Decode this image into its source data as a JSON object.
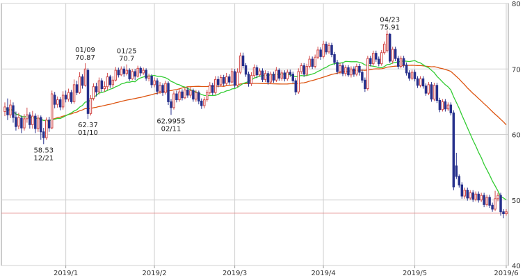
{
  "chart_data": {
    "type": "candlestick",
    "x_ticks": [
      {
        "label": "2019/1",
        "index": 22
      },
      {
        "label": "2019/2",
        "index": 54
      },
      {
        "label": "2019/3",
        "index": 83
      },
      {
        "label": "2019/4",
        "index": 115
      },
      {
        "label": "2019/5",
        "index": 148
      },
      {
        "label": "2019/6",
        "index": 181
      }
    ],
    "y_ticks": [
      40,
      50,
      60,
      70,
      80
    ],
    "ylim": [
      40,
      80
    ],
    "grid": true,
    "colors": {
      "up": "#d24a4a",
      "down": "#26308c",
      "ma_short": "#33cc33",
      "ma_long": "#dd5511",
      "price_line": "#e08080",
      "grid": "#d0d0d0",
      "axis": "#999999"
    },
    "current_price": 48.0,
    "annotations": [
      {
        "date": "12/21",
        "value": "58.53",
        "index": 14,
        "kind": "low"
      },
      {
        "date": "01/09",
        "value": "70.87",
        "index": 29,
        "kind": "high"
      },
      {
        "date": "01/10",
        "value": "62.37",
        "index": 30,
        "kind": "low"
      },
      {
        "date": "01/25",
        "value": "70.7",
        "index": 44,
        "kind": "high"
      },
      {
        "date": "02/11",
        "value": "62.9955",
        "index": 60,
        "kind": "low"
      },
      {
        "date": "04/23",
        "value": "75.91",
        "index": 139,
        "kind": "high"
      }
    ],
    "candles": [
      [
        63.5,
        64.2,
        64.9,
        62.8
      ],
      [
        64.1,
        63.0,
        65.5,
        62.2
      ],
      [
        63.0,
        64.5,
        65.3,
        62.5
      ],
      [
        64.4,
        62.6,
        64.9,
        61.8
      ],
      [
        62.6,
        61.2,
        63.5,
        60.6
      ],
      [
        61.3,
        62.6,
        63.3,
        60.8
      ],
      [
        62.5,
        61.0,
        62.9,
        60.2
      ],
      [
        61.0,
        62.4,
        63.1,
        60.6
      ],
      [
        62.4,
        63.0,
        64.1,
        61.8
      ],
      [
        63.0,
        61.5,
        63.4,
        60.9
      ],
      [
        61.5,
        62.8,
        63.6,
        60.9
      ],
      [
        62.8,
        60.9,
        63.2,
        60.2
      ],
      [
        60.9,
        62.5,
        63.0,
        60.4
      ],
      [
        62.6,
        60.4,
        62.9,
        59.2
      ],
      [
        60.4,
        59.5,
        61.0,
        58.53
      ],
      [
        59.5,
        62.2,
        62.6,
        59.2
      ],
      [
        62.2,
        61.0,
        62.7,
        60.4
      ],
      [
        61.0,
        66.2,
        66.7,
        60.8
      ],
      [
        66.0,
        64.6,
        66.5,
        64.0
      ],
      [
        64.6,
        65.3,
        65.8,
        64.1
      ],
      [
        65.3,
        64.2,
        65.7,
        63.7
      ],
      [
        64.2,
        66.0,
        66.6,
        63.8
      ],
      [
        66.0,
        65.4,
        66.7,
        64.9
      ],
      [
        65.4,
        66.4,
        67.0,
        65.0
      ],
      [
        66.4,
        65.0,
        66.8,
        64.7
      ],
      [
        65.0,
        67.6,
        68.4,
        64.7
      ],
      [
        67.6,
        66.4,
        68.2,
        66.0
      ],
      [
        66.4,
        68.8,
        69.5,
        66.2
      ],
      [
        68.8,
        67.5,
        69.2,
        67.0
      ],
      [
        67.5,
        70.0,
        70.87,
        67.3
      ],
      [
        69.8,
        63.2,
        70.1,
        62.37
      ],
      [
        63.2,
        65.5,
        66.0,
        62.9
      ],
      [
        65.5,
        67.3,
        67.8,
        65.2
      ],
      [
        67.3,
        66.5,
        67.9,
        65.8
      ],
      [
        66.5,
        68.2,
        68.7,
        66.1
      ],
      [
        68.2,
        67.0,
        68.6,
        66.5
      ],
      [
        67.0,
        67.3,
        68.1,
        66.5
      ],
      [
        67.3,
        68.8,
        69.4,
        66.8
      ],
      [
        68.8,
        67.6,
        69.1,
        67.1
      ],
      [
        67.6,
        68.3,
        68.9,
        67.1
      ],
      [
        68.3,
        69.8,
        70.3,
        68.1
      ],
      [
        69.8,
        69.1,
        70.2,
        68.7
      ],
      [
        69.1,
        70.0,
        70.4,
        68.9
      ],
      [
        70.0,
        69.3,
        70.4,
        68.8
      ],
      [
        69.3,
        69.8,
        70.7,
        69.0
      ],
      [
        69.8,
        68.5,
        70.1,
        68.2
      ],
      [
        68.5,
        69.6,
        70.0,
        68.3
      ],
      [
        69.6,
        68.9,
        70.0,
        68.3
      ],
      [
        68.9,
        70.1,
        70.5,
        68.7
      ],
      [
        70.1,
        69.4,
        70.4,
        68.9
      ],
      [
        69.4,
        69.8,
        70.2,
        69.1
      ],
      [
        69.8,
        68.6,
        70.1,
        68.2
      ],
      [
        68.6,
        68.9,
        69.3,
        68.1
      ],
      [
        68.9,
        67.6,
        69.2,
        67.1
      ],
      [
        67.6,
        68.2,
        68.7,
        67.2
      ],
      [
        68.2,
        66.6,
        68.6,
        66.1
      ],
      [
        66.6,
        67.5,
        68.0,
        66.2
      ],
      [
        67.5,
        66.4,
        67.8,
        65.9
      ],
      [
        66.4,
        67.8,
        68.2,
        66.1
      ],
      [
        67.8,
        65.0,
        68.1,
        64.5
      ],
      [
        65.0,
        64.1,
        65.4,
        62.9955
      ],
      [
        64.1,
        66.2,
        66.6,
        63.8
      ],
      [
        66.2,
        65.3,
        66.7,
        64.9
      ],
      [
        65.3,
        66.5,
        66.9,
        65.0
      ],
      [
        66.5,
        65.6,
        66.9,
        65.2
      ],
      [
        65.6,
        66.8,
        67.2,
        65.4
      ],
      [
        66.8,
        66.0,
        67.2,
        65.6
      ],
      [
        66.0,
        66.7,
        67.2,
        65.6
      ],
      [
        66.7,
        65.4,
        67.0,
        65.0
      ],
      [
        65.4,
        66.4,
        66.8,
        65.0
      ],
      [
        66.4,
        65.1,
        66.7,
        64.6
      ],
      [
        65.1,
        64.4,
        65.5,
        63.9
      ],
      [
        64.4,
        65.3,
        65.7,
        64.0
      ],
      [
        65.3,
        66.4,
        66.8,
        65.0
      ],
      [
        66.4,
        67.5,
        68.0,
        66.1
      ],
      [
        67.5,
        66.4,
        67.9,
        66.0
      ],
      [
        66.4,
        68.4,
        68.9,
        66.1
      ],
      [
        68.4,
        67.6,
        68.9,
        67.2
      ],
      [
        67.6,
        68.7,
        69.1,
        67.3
      ],
      [
        68.7,
        67.8,
        69.1,
        67.4
      ],
      [
        67.8,
        68.8,
        69.4,
        67.5
      ],
      [
        68.8,
        68.0,
        69.2,
        67.6
      ],
      [
        68.0,
        69.6,
        70.1,
        67.8
      ],
      [
        69.6,
        67.5,
        70.0,
        67.1
      ],
      [
        67.5,
        69.5,
        70.1,
        67.2
      ],
      [
        69.5,
        72.0,
        72.5,
        69.2
      ],
      [
        72.0,
        70.5,
        72.5,
        70.1
      ],
      [
        70.5,
        69.2,
        70.9,
        68.8
      ],
      [
        69.2,
        67.8,
        69.6,
        67.3
      ],
      [
        67.8,
        69.0,
        69.5,
        67.4
      ],
      [
        69.0,
        70.2,
        70.7,
        68.7
      ],
      [
        70.2,
        69.1,
        70.6,
        68.6
      ],
      [
        69.1,
        69.7,
        70.1,
        68.8
      ],
      [
        69.7,
        68.4,
        70.1,
        68.0
      ],
      [
        68.4,
        69.3,
        69.8,
        68.0
      ],
      [
        69.3,
        68.0,
        69.7,
        67.6
      ],
      [
        68.0,
        69.2,
        69.6,
        67.7
      ],
      [
        69.2,
        68.3,
        69.6,
        67.9
      ],
      [
        68.3,
        69.8,
        70.3,
        68.0
      ],
      [
        69.8,
        68.6,
        70.1,
        68.2
      ],
      [
        68.6,
        69.4,
        69.8,
        68.2
      ],
      [
        69.4,
        68.5,
        69.8,
        68.1
      ],
      [
        68.5,
        69.5,
        69.9,
        68.2
      ],
      [
        69.5,
        69.2,
        69.9,
        68.8
      ],
      [
        69.2,
        68.2,
        69.6,
        67.8
      ],
      [
        68.2,
        66.5,
        68.6,
        66.0
      ],
      [
        66.5,
        69.6,
        70.1,
        66.2
      ],
      [
        69.6,
        70.5,
        70.9,
        69.2
      ],
      [
        70.5,
        69.2,
        70.9,
        68.8
      ],
      [
        69.2,
        70.4,
        70.8,
        68.9
      ],
      [
        70.4,
        71.5,
        72.0,
        70.1
      ],
      [
        71.5,
        70.4,
        71.9,
        70.0
      ],
      [
        70.4,
        71.8,
        72.2,
        70.1
      ],
      [
        71.8,
        72.9,
        73.4,
        71.5
      ],
      [
        72.9,
        71.9,
        73.3,
        71.4
      ],
      [
        71.9,
        73.8,
        74.3,
        71.6
      ],
      [
        73.8,
        72.6,
        74.2,
        72.2
      ],
      [
        72.6,
        73.6,
        74.0,
        72.3
      ],
      [
        73.6,
        72.2,
        74.0,
        71.8
      ],
      [
        72.2,
        71.0,
        72.6,
        70.6
      ],
      [
        71.0,
        69.6,
        71.4,
        69.2
      ],
      [
        69.6,
        70.5,
        70.9,
        69.2
      ],
      [
        70.5,
        69.3,
        70.9,
        68.9
      ],
      [
        69.3,
        70.2,
        70.6,
        68.9
      ],
      [
        70.2,
        69.1,
        70.6,
        68.8
      ],
      [
        69.1,
        70.0,
        70.4,
        68.7
      ],
      [
        70.0,
        69.2,
        70.4,
        68.8
      ],
      [
        69.2,
        70.4,
        70.8,
        68.9
      ],
      [
        70.4,
        69.5,
        70.8,
        69.0
      ],
      [
        69.5,
        68.3,
        69.9,
        67.9
      ],
      [
        68.3,
        67.0,
        68.7,
        66.5
      ],
      [
        67.0,
        71.6,
        72.0,
        66.7
      ],
      [
        71.6,
        70.8,
        72.0,
        70.4
      ],
      [
        70.8,
        72.4,
        72.8,
        70.5
      ],
      [
        72.4,
        71.5,
        72.8,
        71.1
      ],
      [
        71.5,
        70.8,
        71.9,
        70.4
      ],
      [
        70.8,
        72.5,
        72.9,
        70.5
      ],
      [
        72.5,
        73.8,
        74.2,
        72.2
      ],
      [
        72.8,
        75.3,
        75.91,
        72.5
      ],
      [
        75.3,
        71.2,
        75.5,
        70.9
      ],
      [
        71.2,
        73.0,
        73.4,
        70.8
      ],
      [
        73.0,
        71.6,
        73.4,
        71.2
      ],
      [
        71.6,
        70.4,
        72.0,
        70.0
      ],
      [
        70.4,
        71.6,
        72.0,
        70.1
      ],
      [
        71.6,
        70.6,
        72.0,
        70.2
      ],
      [
        70.6,
        69.4,
        71.0,
        69.0
      ],
      [
        69.4,
        68.6,
        69.8,
        68.2
      ],
      [
        68.6,
        69.5,
        69.9,
        68.3
      ],
      [
        69.5,
        68.5,
        69.9,
        68.1
      ],
      [
        68.5,
        67.5,
        68.9,
        67.1
      ],
      [
        67.5,
        68.5,
        68.9,
        67.2
      ],
      [
        68.5,
        67.4,
        68.9,
        67.0
      ],
      [
        67.4,
        66.3,
        67.8,
        65.9
      ],
      [
        66.3,
        67.6,
        68.0,
        66.0
      ],
      [
        67.6,
        65.4,
        68.0,
        65.0
      ],
      [
        65.4,
        67.5,
        67.9,
        65.1
      ],
      [
        67.5,
        65.2,
        67.9,
        64.8
      ],
      [
        65.2,
        63.8,
        65.6,
        63.4
      ],
      [
        63.8,
        65.0,
        65.4,
        63.5
      ],
      [
        65.0,
        63.9,
        65.4,
        63.5
      ],
      [
        63.9,
        64.5,
        64.9,
        63.6
      ],
      [
        64.5,
        63.3,
        64.9,
        62.9
      ],
      [
        63.3,
        52.0,
        63.7,
        51.5
      ],
      [
        55.2,
        53.6,
        57.2,
        53.2
      ],
      [
        53.6,
        52.3,
        53.9,
        51.9
      ],
      [
        52.3,
        50.6,
        52.7,
        50.2
      ],
      [
        50.6,
        51.5,
        51.9,
        50.2
      ],
      [
        51.5,
        50.3,
        51.9,
        49.9
      ],
      [
        50.3,
        51.1,
        51.5,
        50.0
      ],
      [
        51.1,
        50.1,
        51.5,
        49.7
      ],
      [
        50.1,
        50.9,
        51.3,
        49.8
      ],
      [
        50.9,
        50.0,
        51.3,
        49.6
      ],
      [
        50.0,
        50.7,
        51.1,
        49.7
      ],
      [
        50.7,
        49.3,
        51.1,
        48.9
      ],
      [
        49.3,
        50.4,
        50.8,
        49.0
      ],
      [
        50.4,
        49.2,
        50.8,
        48.8
      ],
      [
        49.2,
        48.6,
        49.6,
        48.2
      ],
      [
        48.6,
        50.2,
        51.4,
        48.3
      ],
      [
        50.2,
        50.7,
        51.1,
        49.8
      ],
      [
        50.7,
        48.2,
        51.1,
        47.6
      ],
      [
        48.2,
        47.9,
        48.6,
        47.2
      ],
      [
        47.9,
        48.2,
        48.6,
        47.6
      ]
    ]
  }
}
